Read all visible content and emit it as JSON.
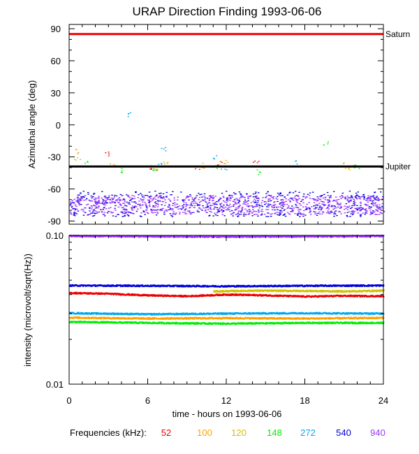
{
  "chart_data": [
    {
      "type": "scatter",
      "title": "URAP Direction Finding  1993-06-06",
      "ylabel": "Azimuthal angle (deg)",
      "xlim": [
        0,
        24
      ],
      "ylim": [
        -93,
        94
      ],
      "yticks": [
        90,
        60,
        30,
        0,
        -30,
        -60,
        -90
      ],
      "grid": false,
      "reference_lines": [
        {
          "label": "Saturn",
          "y": 85,
          "color": "#ee0000"
        },
        {
          "label": "Jupiter",
          "y": -39,
          "color": "#000000"
        }
      ],
      "series": [
        {
          "name": "52",
          "color": "#ee0000",
          "scattered_points": [
            [
              2.9,
              -28
            ],
            [
              6.1,
              -40
            ],
            [
              9.8,
              -41
            ],
            [
              11.4,
              -37
            ],
            [
              14.2,
              -34
            ]
          ]
        },
        {
          "name": "100",
          "color": "#ffa000",
          "scattered_points": [
            [
              0.5,
              -25
            ],
            [
              6.6,
              -41
            ],
            [
              10.2,
              -38
            ],
            [
              11.9,
              -35
            ],
            [
              21.3,
              -41
            ]
          ]
        },
        {
          "name": "120",
          "color": "#d0c000",
          "scattered_points": [
            [
              0.6,
              -33
            ],
            [
              3.2,
              -38
            ],
            [
              7.4,
              -37
            ],
            [
              11.6,
              -36
            ],
            [
              20.8,
              -38
            ]
          ]
        },
        {
          "name": "148",
          "color": "#00ee00",
          "scattered_points": [
            [
              1.3,
              -36
            ],
            [
              3.9,
              -43
            ],
            [
              6.5,
              -42
            ],
            [
              11.1,
              -40
            ],
            [
              14.5,
              -44
            ],
            [
              19.6,
              -17
            ],
            [
              21.9,
              -40
            ]
          ]
        },
        {
          "name": "272",
          "color": "#00a8ee",
          "scattered_points": [
            [
              4.6,
              9
            ],
            [
              6.9,
              -37
            ],
            [
              7.2,
              -22
            ],
            [
              11.0,
              -31
            ],
            [
              11.8,
              -41
            ],
            [
              17.4,
              -36
            ]
          ]
        },
        {
          "name": "540",
          "color": "#0000dd",
          "band": [
            -86,
            -62
          ]
        },
        {
          "name": "940",
          "color": "#9933ff",
          "band": [
            -84,
            -66
          ]
        }
      ]
    },
    {
      "type": "line",
      "ylabel": "intensity (microvolt/sqrt(Hz))",
      "xlabel": "time - hours on 1993-06-06",
      "xlim": [
        0,
        24
      ],
      "xticks": [
        0,
        6,
        12,
        18,
        24
      ],
      "yscale": "log",
      "ylim": [
        0.01,
        0.1
      ],
      "ytick_labels": [
        "0.10",
        "0.01"
      ],
      "grid": false,
      "series": [
        {
          "name": "940",
          "color": "#9933ff",
          "x": [
            0,
            6,
            12,
            18,
            24
          ],
          "y": [
            0.099,
            0.0985,
            0.098,
            0.0985,
            0.099
          ]
        },
        {
          "name": "540",
          "color": "#0000dd",
          "x": [
            0,
            6,
            12,
            18,
            24
          ],
          "y": [
            0.046,
            0.0458,
            0.0455,
            0.0458,
            0.046
          ]
        },
        {
          "name": "120",
          "color": "#d0c000",
          "x": [
            11,
            14,
            18,
            21,
            24
          ],
          "y": [
            0.042,
            0.0425,
            0.0423,
            0.042,
            0.0425
          ]
        },
        {
          "name": "52",
          "color": "#ee0000",
          "x": [
            0,
            3,
            6,
            9,
            12,
            15,
            18,
            21,
            24
          ],
          "y": [
            0.041,
            0.0405,
            0.0395,
            0.039,
            0.04,
            0.0395,
            0.0388,
            0.0392,
            0.039
          ]
        },
        {
          "name": "272",
          "color": "#00a8ee",
          "x": [
            0,
            6,
            12,
            18,
            24
          ],
          "y": [
            0.03,
            0.0295,
            0.0298,
            0.03,
            0.0298
          ]
        },
        {
          "name": "100",
          "color": "#ffa000",
          "x": [
            0,
            6,
            12,
            18,
            24
          ],
          "y": [
            0.028,
            0.0276,
            0.0278,
            0.0276,
            0.0279
          ]
        },
        {
          "name": "148",
          "color": "#00ee00",
          "x": [
            0,
            6,
            12,
            18,
            24
          ],
          "y": [
            0.0262,
            0.0258,
            0.0255,
            0.0258,
            0.0258
          ]
        }
      ]
    }
  ],
  "legend": {
    "title": "Frequencies (kHz):",
    "entries": [
      {
        "label": "52",
        "color": "#ee0000"
      },
      {
        "label": "100",
        "color": "#ffa000"
      },
      {
        "label": "120",
        "color": "#d0c000"
      },
      {
        "label": "148",
        "color": "#00ee00"
      },
      {
        "label": "272",
        "color": "#00a8ee"
      },
      {
        "label": "540",
        "color": "#0000dd"
      },
      {
        "label": "940",
        "color": "#9933ff"
      }
    ]
  }
}
